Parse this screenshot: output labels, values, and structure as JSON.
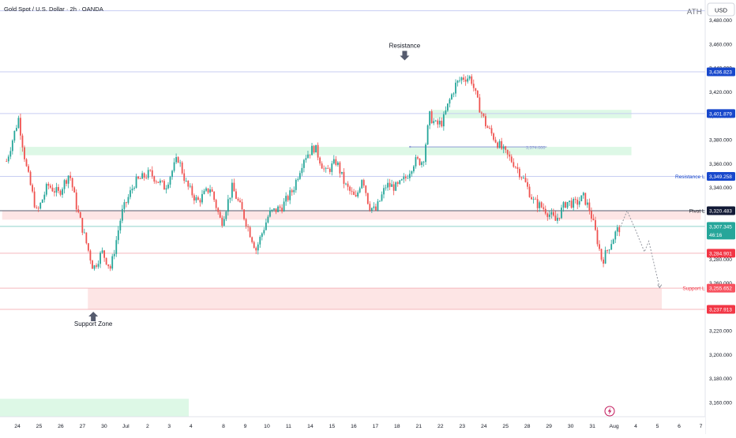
{
  "header": {
    "symbol_title": "Gold Spot / U.S. Dollar · 2h · OANDA",
    "currency": "USD",
    "ath_label": "ATH"
  },
  "colors": {
    "up": "#26a69a",
    "down": "#ef5350",
    "resistance_zone": "#d9f7e3",
    "support_zone": "#fde2e2",
    "blue_badge": "#1848cc",
    "navy_badge": "#121a36",
    "green_badge": "#26a69a",
    "red_badge": "#f23645",
    "pink_badge": "#f7525f"
  },
  "chart_data": {
    "type": "candlestick",
    "title": "Gold Spot / U.S. Dollar · 2h · OANDA",
    "ylim": [
      3148,
      3497
    ],
    "y_ticks": [
      3160,
      3180,
      3200,
      3220,
      3240,
      3260,
      3280,
      3300,
      3320,
      3340,
      3360,
      3380,
      3400,
      3420,
      3440,
      3460,
      3480
    ],
    "y_tick_labels": [
      "3,160.000",
      "3,180.000",
      "3,200.000",
      "3,220.000",
      "3,240.000",
      "3,260.000",
      "3,280.000",
      "3,300.000",
      "3,320.000",
      "3,340.000",
      "3,360.000",
      "3,380.000",
      "3,400.000",
      "3,420.000",
      "3,440.000",
      "3,460.000",
      "3,480.000"
    ],
    "x_labels": [
      "24",
      "25",
      "26",
      "27",
      "30",
      "Jul",
      "2",
      "3",
      "4",
      "8",
      "9",
      "10",
      "11",
      "14",
      "15",
      "16",
      "17",
      "18",
      "21",
      "22",
      "23",
      "24",
      "25",
      "28",
      "29",
      "30",
      "31",
      "Aug",
      "4",
      "5",
      "6",
      "7"
    ],
    "x_label_positions": [
      0.5,
      1.5,
      2.5,
      3.5,
      4.5,
      5.5,
      6.5,
      7.5,
      8.5,
      10,
      11,
      12,
      13,
      14,
      15,
      16,
      17,
      18,
      19,
      20,
      21,
      22,
      23,
      24,
      25,
      26,
      27,
      28,
      29,
      30,
      31,
      32
    ],
    "xlim": [
      -0.3,
      32.2
    ],
    "price_path": [
      [
        0.0,
        3362
      ],
      [
        0.55,
        3398
      ],
      [
        0.9,
        3358
      ],
      [
        1.4,
        3318
      ],
      [
        1.9,
        3342
      ],
      [
        2.4,
        3335
      ],
      [
        2.9,
        3352
      ],
      [
        3.25,
        3322
      ],
      [
        3.55,
        3302
      ],
      [
        4.0,
        3272
      ],
      [
        4.4,
        3286
      ],
      [
        4.8,
        3272
      ],
      [
        5.3,
        3318
      ],
      [
        5.9,
        3344
      ],
      [
        6.6,
        3352
      ],
      [
        7.3,
        3340
      ],
      [
        7.9,
        3365
      ],
      [
        8.3,
        3342
      ],
      [
        8.8,
        3328
      ],
      [
        9.4,
        3340
      ],
      [
        9.9,
        3310
      ],
      [
        10.4,
        3340
      ],
      [
        10.9,
        3318
      ],
      [
        11.5,
        3288
      ],
      [
        12.1,
        3318
      ],
      [
        12.7,
        3324
      ],
      [
        13.2,
        3338
      ],
      [
        13.7,
        3365
      ],
      [
        14.2,
        3374
      ],
      [
        14.7,
        3352
      ],
      [
        15.2,
        3362
      ],
      [
        15.6,
        3342
      ],
      [
        16.1,
        3330
      ],
      [
        16.4,
        3350
      ],
      [
        16.7,
        3325
      ],
      [
        17.0,
        3320
      ],
      [
        17.5,
        3342
      ],
      [
        18.0,
        3340
      ],
      [
        18.4,
        3348
      ],
      [
        18.8,
        3362
      ],
      [
        19.2,
        3362
      ],
      [
        19.5,
        3400
      ],
      [
        19.8,
        3392
      ],
      [
        20.1,
        3395
      ],
      [
        20.4,
        3412
      ],
      [
        20.7,
        3426
      ],
      [
        21.0,
        3432
      ],
      [
        21.4,
        3432
      ],
      [
        21.7,
        3412
      ],
      [
        22.1,
        3392
      ],
      [
        22.6,
        3378
      ],
      [
        23.0,
        3368
      ],
      [
        23.4,
        3360
      ],
      [
        23.8,
        3348
      ],
      [
        24.3,
        3328
      ],
      [
        24.8,
        3322
      ],
      [
        25.3,
        3312
      ],
      [
        25.8,
        3328
      ],
      [
        26.2,
        3326
      ],
      [
        26.6,
        3332
      ],
      [
        26.9,
        3320
      ],
      [
        27.2,
        3298
      ],
      [
        27.45,
        3278
      ],
      [
        27.8,
        3292
      ],
      [
        28.1,
        3303
      ],
      [
        28.3,
        3307
      ]
    ],
    "volatility": 4.2,
    "resistance_zone": {
      "y1": 3367,
      "y2": 3374,
      "x1": 0.6,
      "x2": 28.8
    },
    "resistance_zone_2": {
      "y1": 3398,
      "y2": 3405,
      "x1": 19.6,
      "x2": 28.8
    },
    "support_zone": {
      "y1": 3237.913,
      "y2": 3255.652,
      "x1": 3.75,
      "x2": 30.2
    },
    "pivot_zone": {
      "y1": 3313,
      "y2": 3320.483,
      "x1": -0.2,
      "x2": 32
    },
    "bottom_green_zone": {
      "y1": 3140,
      "y2": 3163,
      "x1": -0.3,
      "x2": 8.4
    },
    "horizontal_lines": [
      {
        "value": 3436.823,
        "color": "#c7cdf2"
      },
      {
        "value": 3401.879,
        "color": "#c7cdf2"
      },
      {
        "value": 3349.258,
        "color": "#c7cdf2"
      },
      {
        "value": 3320.483,
        "color": "#555b6e"
      },
      {
        "value": 3307.345,
        "color": "#8fd3cb"
      },
      {
        "value": 3284.901,
        "color": "#f5b8bd"
      },
      {
        "value": 3255.652,
        "color": "#f5b8bd"
      },
      {
        "value": 3237.913,
        "color": "#f5b8bd"
      }
    ],
    "ath_line": 3488,
    "dotted_level": {
      "value": 3374.0,
      "label": "3,374.000",
      "x1": 18.6,
      "x2": 24.9
    },
    "projection_path": [
      [
        28.3,
        3307
      ],
      [
        28.6,
        3320.5
      ],
      [
        29.0,
        3304
      ],
      [
        29.4,
        3286
      ],
      [
        29.6,
        3295
      ],
      [
        30.1,
        3256
      ]
    ],
    "price_labels": [
      {
        "value": 3436.823,
        "text": "3,436.823",
        "style": "blue"
      },
      {
        "value": 3401.879,
        "text": "3,401.879",
        "style": "blue"
      },
      {
        "value": 3349.258,
        "text": "3,349.258",
        "style": "blue"
      },
      {
        "value": 3320.483,
        "text": "3,320.483",
        "style": "navy"
      },
      {
        "value": 3307.345,
        "text": "3,307.345",
        "style": "green",
        "subtext": "46:16"
      },
      {
        "value": 3284.901,
        "text": "3,284.901",
        "style": "red"
      },
      {
        "value": 3255.652,
        "text": "3,255.652",
        "style": "pink"
      },
      {
        "value": 3237.913,
        "text": "3,237.913",
        "style": "red"
      }
    ],
    "level_labels": [
      {
        "value": 3349.258,
        "text": "Resistance Line",
        "color": "#1848cc",
        "x": 31.7
      },
      {
        "value": 3320.483,
        "text": "Pivot Line",
        "color": "#131722",
        "x": 31.7
      },
      {
        "value": 3255.652,
        "text": "Support Line",
        "color": "#f23645",
        "x": 31.7
      }
    ],
    "annotations": [
      {
        "text": "Resistance",
        "x": 18.35,
        "value": 3457,
        "arrow": "down"
      },
      {
        "text": "Support Zone",
        "x": 4.0,
        "value": 3224,
        "arrow": "up"
      }
    ]
  }
}
